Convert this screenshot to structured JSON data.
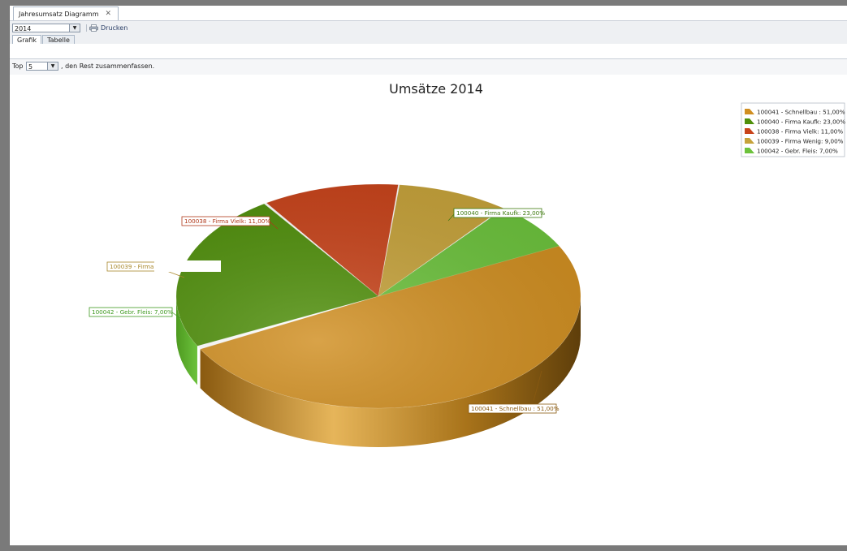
{
  "document_tab": {
    "title": "Jahresumsatz Diagramm",
    "close_glyph": "✕"
  },
  "toolbar": {
    "year_value": "2014",
    "print_label": "Drucken",
    "tabs": [
      {
        "label": "Grafik",
        "active": true
      },
      {
        "label": "Tabelle",
        "active": false
      }
    ]
  },
  "filter": {
    "prefix": "Top",
    "top_value": "5",
    "suffix": ", den Rest zusammenfassen."
  },
  "chart_data": {
    "type": "pie",
    "title": "Umsätze 2014",
    "legend_position": "top-right",
    "slices": [
      {
        "label": "100041 - Schnellbau : 51,00%",
        "value": 51,
        "color": "#d08e20"
      },
      {
        "label": "100040 - Firma Kaufk: 23,00%",
        "value": 23,
        "color": "#4f8f0a"
      },
      {
        "label": "100038 - Firma Vielk: 11,00%",
        "value": 11,
        "color": "#c8431a"
      },
      {
        "label": "100039 - Firma Wenig: 9,00%",
        "value": 9,
        "color": "#c6a23a"
      },
      {
        "label": "100042 - Gebr. Fleis: 7,00%",
        "value": 7,
        "color": "#6cc23c"
      }
    ],
    "data_labels": [
      "100041 - Schnellbau : 51,00%",
      "100040 - Firma Kaufk: 23,00%",
      "100038 - Firma Vielk: 11,00%",
      "100039 - Firma",
      "100042 - Gebr. Fleis: 7,00%"
    ]
  }
}
